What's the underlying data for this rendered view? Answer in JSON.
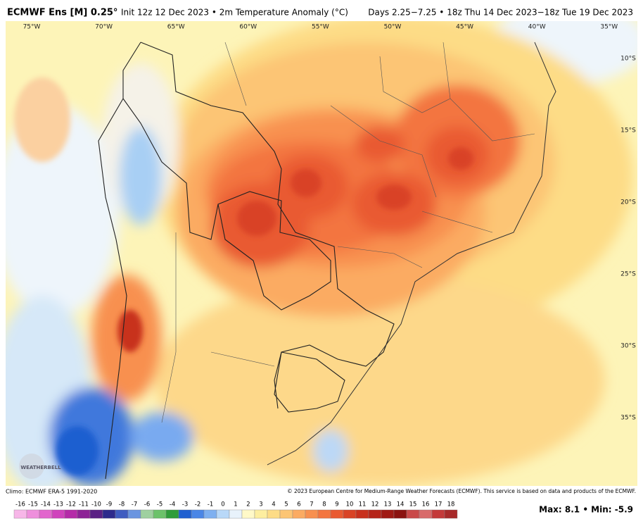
{
  "header": {
    "model": "ECMWF Ens [M] 0.25°",
    "init": "Init 12z 12 Dec 2023 • 2m Temperature Anomaly (°C)",
    "valid": "Days 2.25−7.25 • 18z Thu 14 Dec 2023−18z Tue 19 Dec 2023"
  },
  "map": {
    "longitudes": [
      "75°W",
      "70°W",
      "65°W",
      "60°W",
      "55°W",
      "50°W",
      "45°W",
      "40°W",
      "35°W"
    ],
    "latitudes": [
      "10°S",
      "15°S",
      "20°S",
      "25°S",
      "30°S",
      "35°S"
    ],
    "watermark": "WEATHERBELL"
  },
  "footer": {
    "climo": "Climo: ECMWF ERA-5 1991-2020",
    "copyright": "© 2023 European Centre for Medium-Range Weather Forecasts (ECMWF). This service is based on data and products of the ECMWF.",
    "stats": "Max: 8.1 • Min: -5.9"
  },
  "colorbar": {
    "ticks": [
      -16,
      -15,
      -14,
      -13,
      -12,
      -11,
      -10,
      -9,
      -8,
      -7,
      -6,
      -5,
      -4,
      -3,
      -2,
      -1,
      0,
      1,
      2,
      3,
      4,
      5,
      6,
      7,
      8,
      9,
      10,
      11,
      12,
      13,
      14,
      15,
      16,
      17,
      18
    ],
    "colors": [
      "#f7b6e8",
      "#ee8fdc",
      "#e266cd",
      "#d042bc",
      "#b52aa8",
      "#8d2296",
      "#5b2185",
      "#2d2a8c",
      "#3f5cc0",
      "#6a95e0",
      "#9fd0a0",
      "#6cc26a",
      "#2f9c3a",
      "#1f5fd0",
      "#4a86e6",
      "#7eb0f0",
      "#b8d8f8",
      "#e8f2fb",
      "#fff9c8",
      "#fdeea0",
      "#fddc86",
      "#fcc574",
      "#fbab62",
      "#f8904f",
      "#f3753f",
      "#e95a31",
      "#d94325",
      "#c8301d",
      "#b52318",
      "#a01a14",
      "#8b1310",
      "#c94a4a",
      "#d86a6a",
      "#c43a3a",
      "#a82a2a"
    ]
  }
}
